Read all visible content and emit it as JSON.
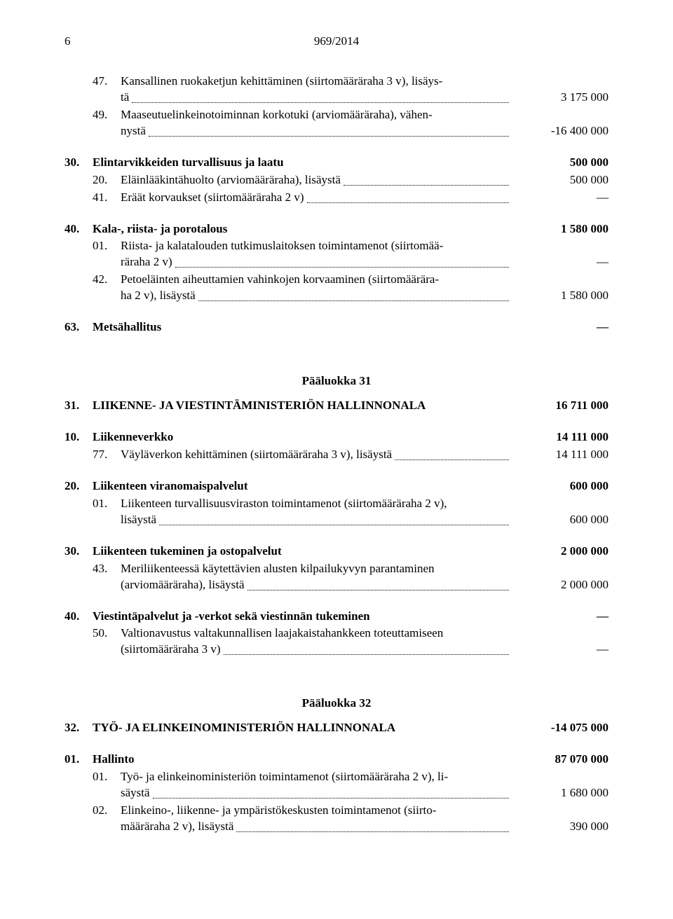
{
  "page_number": "6",
  "document_number": "969/2014",
  "rows": [
    {
      "type": "item",
      "idx": "47.",
      "text1": "Kansallinen ruokaketjun kehittäminen (siirtomääräraha 3 v), lisäys-",
      "text2": "tä",
      "value": "3 175 000"
    },
    {
      "type": "item",
      "idx": "49.",
      "text1": "Maaseutuelinkeinotoiminnan korkotuki (arviomääräraha), vähen-",
      "text2": "nystä",
      "value": "-16 400 000"
    },
    {
      "type": "gap"
    },
    {
      "type": "head",
      "idx": "30.",
      "text": "Elintarvikkeiden turvallisuus ja laatu",
      "value": "500 000"
    },
    {
      "type": "item",
      "idx": "20.",
      "text1": "Eläinlääkintähuolto (arviomääräraha), lisäystä",
      "value": "500 000"
    },
    {
      "type": "item",
      "idx": "41.",
      "text1": "Eräät korvaukset (siirtomääräraha 2 v)",
      "value": "—"
    },
    {
      "type": "gap"
    },
    {
      "type": "head",
      "idx": "40.",
      "text": "Kala-, riista- ja porotalous",
      "value": "1 580 000"
    },
    {
      "type": "item",
      "idx": "01.",
      "text1": "Riista- ja kalatalouden tutkimuslaitoksen toimintamenot (siirtomää-",
      "text2": "räraha 2 v)",
      "value": "—"
    },
    {
      "type": "item",
      "idx": "42.",
      "text1": "Petoeläinten aiheuttamien vahinkojen korvaaminen (siirtomäärära-",
      "text2": "ha 2 v), lisäystä",
      "value": "1 580 000"
    },
    {
      "type": "gap"
    },
    {
      "type": "head",
      "idx": "63.",
      "text": "Metsähallitus",
      "value": "—",
      "noleader": true
    },
    {
      "type": "gap-lg"
    },
    {
      "type": "center",
      "text": "Pääluokka 31"
    },
    {
      "type": "head",
      "idx": "31.",
      "text": "LIIKENNE- JA VIESTINTÄMINISTERIÖN HALLINNONALA",
      "value": "16 711 000",
      "noleader": true
    },
    {
      "type": "gap"
    },
    {
      "type": "head",
      "idx": "10.",
      "text": "Liikenneverkko",
      "value": "14 111 000"
    },
    {
      "type": "item",
      "idx": "77.",
      "text1": "Väyläverkon kehittäminen (siirtomääräraha 3 v), lisäystä",
      "value": "14 111 000"
    },
    {
      "type": "gap"
    },
    {
      "type": "head",
      "idx": "20.",
      "text": "Liikenteen viranomaispalvelut",
      "value": "600 000"
    },
    {
      "type": "item",
      "idx": "01.",
      "text1": "Liikenteen turvallisuusviraston toimintamenot (siirtomääräraha 2 v),",
      "text2": "lisäystä",
      "value": "600 000"
    },
    {
      "type": "gap"
    },
    {
      "type": "head",
      "idx": "30.",
      "text": "Liikenteen tukeminen ja ostopalvelut",
      "value": "2 000 000"
    },
    {
      "type": "item",
      "idx": "43.",
      "text1": "Meriliikenteessä käytettävien alusten kilpailukyvyn parantaminen",
      "text2": "(arviomääräraha), lisäystä",
      "value": "2 000 000"
    },
    {
      "type": "gap"
    },
    {
      "type": "head",
      "idx": "40.",
      "text": "Viestintäpalvelut ja -verkot sekä viestinnän tukeminen",
      "value": "—",
      "noleader": true
    },
    {
      "type": "item",
      "idx": "50.",
      "text1": "Valtionavustus valtakunnallisen laajakaistahankkeen toteuttamiseen",
      "text2": "(siirtomääräraha 3 v)",
      "value": "—"
    },
    {
      "type": "gap-lg"
    },
    {
      "type": "center",
      "text": "Pääluokka 32"
    },
    {
      "type": "head",
      "idx": "32.",
      "text": "TYÖ- JA ELINKEINOMINISTERIÖN HALLINNONALA",
      "value": "-14 075 000",
      "noleader": true
    },
    {
      "type": "gap"
    },
    {
      "type": "head",
      "idx": "01.",
      "text": "Hallinto",
      "value": "87 070 000"
    },
    {
      "type": "item",
      "idx": "01.",
      "text1": "Työ- ja elinkeinoministeriön toimintamenot (siirtomääräraha 2 v), li-",
      "text2": "säystä",
      "value": "1 680 000"
    },
    {
      "type": "item",
      "idx": "02.",
      "text1": "Elinkeino-, liikenne- ja ympäristökeskusten toimintamenot (siirto-",
      "text2": "määräraha 2 v), lisäystä",
      "value": "390 000"
    }
  ]
}
